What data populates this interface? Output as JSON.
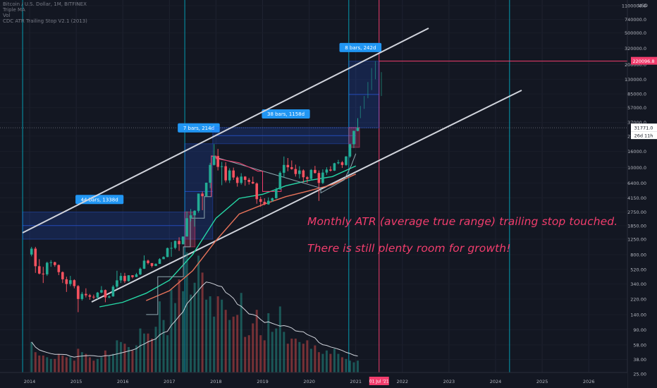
{
  "legend": {
    "symbol": "Bitcoin / U.S. Dollar, 1M, BITFINEX",
    "ind1": "Triple MA",
    "ind2": "Vol",
    "ind3": "CDC ATR Trailing Stop V2.1 (2013)"
  },
  "annotations": {
    "line1": "Monthly ATR (average true range) trailing stop touched.",
    "line2": "There is still plenty room for growth!"
  },
  "measures": [
    {
      "label": "44 bars, 1338d"
    },
    {
      "label": "7 bars, 214d"
    },
    {
      "label": "38 bars, 1158d"
    },
    {
      "label": "8 bars, 242d"
    }
  ],
  "price_axis": {
    "currency": "USD",
    "ticks": [
      1100000.0,
      740000.0,
      500000.0,
      320000.0,
      200000.0,
      130000.0,
      85000.0,
      57000.0,
      37000.0,
      25000.0,
      16000.0,
      10000.0,
      6400.0,
      4150.0,
      2750.0,
      1850.0,
      1250.0,
      800.0,
      520.0,
      340.0,
      220.0,
      140.0,
      90.0,
      58.0,
      38.0,
      25.0
    ],
    "tick_labels": [
      "1100000.0",
      "740000.0",
      "500000.0",
      "320000.0",
      "200000.0",
      "130000.0",
      "85000.0",
      "57000.0",
      "37000.0",
      "25000.0",
      "16000.0",
      "10000.0",
      "6400.00",
      "4150.00",
      "2750.00",
      "1850.00",
      "1250.00",
      "800.00",
      "520.00",
      "340.00",
      "220.00",
      "140.00",
      "90.00",
      "58.00",
      "38.00",
      "25.00"
    ],
    "scale": "log",
    "range": [
      18,
      1300000
    ],
    "markers": {
      "last_price": {
        "label": "31771.0",
        "value": 31771.0
      },
      "countdown": {
        "label": "26d 11h"
      },
      "target": {
        "label": "220096.8",
        "value": 220096.8
      }
    }
  },
  "time_axis": {
    "ticks": [
      "2014",
      "2015",
      "2016",
      "2017",
      "2018",
      "2019",
      "2020",
      "2021",
      "2022",
      "2023",
      "2024",
      "2025",
      "2026"
    ],
    "highlight": "01 Jul '21"
  },
  "colors": {
    "background": "#131722",
    "up": "#26a69a",
    "down": "#ef5350",
    "up_candle": "#22ab94",
    "down_candle": "#f7525f",
    "measure_box": "#2962ff",
    "measure_label": "#2196f3",
    "channel": "#d1d4dc",
    "accent": "#f23d6d",
    "vertical_line": "#00bcd4",
    "ma_fast": "#26d9a7",
    "ma_slow": "#e8735a"
  },
  "chart_data": {
    "type": "candlestick",
    "scale": "log",
    "y_range": [
      18,
      1300000
    ],
    "x": [
      "2014-01",
      "2014-02",
      "2014-03",
      "2014-04",
      "2014-05",
      "2014-06",
      "2014-07",
      "2014-08",
      "2014-09",
      "2014-10",
      "2014-11",
      "2014-12",
      "2015-01",
      "2015-02",
      "2015-03",
      "2015-04",
      "2015-05",
      "2015-06",
      "2015-07",
      "2015-08",
      "2015-09",
      "2015-10",
      "2015-11",
      "2015-12",
      "2016-01",
      "2016-02",
      "2016-03",
      "2016-04",
      "2016-05",
      "2016-06",
      "2016-07",
      "2016-08",
      "2016-09",
      "2016-10",
      "2016-11",
      "2016-12",
      "2017-01",
      "2017-02",
      "2017-03",
      "2017-04",
      "2017-05",
      "2017-06",
      "2017-07",
      "2017-08",
      "2017-09",
      "2017-10",
      "2017-11",
      "2017-12",
      "2018-01",
      "2018-02",
      "2018-03",
      "2018-04",
      "2018-05",
      "2018-06",
      "2018-07",
      "2018-08",
      "2018-09",
      "2018-10",
      "2018-11",
      "2018-12",
      "2019-01",
      "2019-02",
      "2019-03",
      "2019-04",
      "2019-05",
      "2019-06",
      "2019-07",
      "2019-08",
      "2019-09",
      "2019-10",
      "2019-11",
      "2019-12",
      "2020-01",
      "2020-02",
      "2020-03",
      "2020-04",
      "2020-05",
      "2020-06",
      "2020-07",
      "2020-08",
      "2020-09",
      "2020-10",
      "2020-11",
      "2020-12",
      "2021-01"
    ],
    "series": [
      {
        "name": "BTCUSD",
        "ohlc": [
          [
            800,
            1000,
            760,
            950
          ],
          [
            950,
            1000,
            470,
            570
          ],
          [
            570,
            700,
            450,
            460
          ],
          [
            460,
            560,
            350,
            450
          ],
          [
            450,
            650,
            430,
            630
          ],
          [
            630,
            680,
            560,
            640
          ],
          [
            640,
            650,
            560,
            590
          ],
          [
            590,
            600,
            440,
            480
          ],
          [
            480,
            490,
            350,
            390
          ],
          [
            390,
            420,
            270,
            340
          ],
          [
            340,
            430,
            320,
            380
          ],
          [
            380,
            390,
            300,
            320
          ],
          [
            320,
            330,
            150,
            220
          ],
          [
            220,
            270,
            210,
            255
          ],
          [
            255,
            300,
            230,
            245
          ],
          [
            245,
            255,
            215,
            235
          ],
          [
            235,
            250,
            220,
            230
          ],
          [
            230,
            270,
            220,
            265
          ],
          [
            265,
            320,
            260,
            285
          ],
          [
            285,
            290,
            200,
            230
          ],
          [
            230,
            245,
            225,
            237
          ],
          [
            237,
            330,
            235,
            315
          ],
          [
            315,
            500,
            300,
            378
          ],
          [
            378,
            470,
            350,
            430
          ],
          [
            430,
            470,
            350,
            370
          ],
          [
            370,
            440,
            365,
            438
          ],
          [
            438,
            440,
            400,
            416
          ],
          [
            416,
            470,
            415,
            450
          ],
          [
            450,
            550,
            440,
            530
          ],
          [
            530,
            780,
            525,
            670
          ],
          [
            670,
            690,
            600,
            625
          ],
          [
            625,
            620,
            550,
            575
          ],
          [
            575,
            620,
            570,
            610
          ],
          [
            610,
            720,
            610,
            700
          ],
          [
            700,
            760,
            700,
            745
          ],
          [
            745,
            980,
            740,
            965
          ],
          [
            965,
            1150,
            750,
            970
          ],
          [
            970,
            1200,
            930,
            1190
          ],
          [
            1190,
            1320,
            890,
            1080
          ],
          [
            1080,
            1350,
            1070,
            1350
          ],
          [
            1350,
            2800,
            1350,
            2300
          ],
          [
            2300,
            3000,
            2100,
            2500
          ],
          [
            2500,
            2900,
            1800,
            2850
          ],
          [
            2850,
            4700,
            2700,
            4700
          ],
          [
            4700,
            5000,
            2900,
            4350
          ],
          [
            4350,
            6470,
            4300,
            6440
          ],
          [
            6440,
            11500,
            5500,
            10800
          ],
          [
            10800,
            19800,
            10600,
            14000
          ],
          [
            14000,
            17200,
            9200,
            10200
          ],
          [
            10200,
            11800,
            6000,
            10400
          ],
          [
            10400,
            11700,
            6500,
            6900
          ],
          [
            6900,
            9800,
            6400,
            9200
          ],
          [
            9200,
            10000,
            7000,
            7500
          ],
          [
            7500,
            7800,
            5750,
            6400
          ],
          [
            6400,
            8500,
            6100,
            7700
          ],
          [
            7700,
            7800,
            5900,
            7000
          ],
          [
            7000,
            7400,
            6100,
            6600
          ],
          [
            6600,
            7700,
            6200,
            6300
          ],
          [
            6300,
            6500,
            3500,
            4000
          ],
          [
            4000,
            4300,
            3200,
            3700
          ],
          [
            3700,
            4100,
            3350,
            3440
          ],
          [
            3440,
            4200,
            3400,
            3820
          ],
          [
            3820,
            4200,
            3700,
            4100
          ],
          [
            4100,
            5600,
            4050,
            5300
          ],
          [
            5300,
            9000,
            5300,
            8600
          ],
          [
            8600,
            13800,
            7500,
            10800
          ],
          [
            10800,
            13200,
            9000,
            10100
          ],
          [
            10100,
            12300,
            9400,
            9600
          ],
          [
            9600,
            10900,
            7700,
            8300
          ],
          [
            8300,
            10400,
            7300,
            9200
          ],
          [
            9200,
            9500,
            6500,
            7550
          ],
          [
            7550,
            7800,
            6400,
            7200
          ],
          [
            7200,
            9600,
            6900,
            9350
          ],
          [
            9350,
            10500,
            8400,
            8550
          ],
          [
            8550,
            9200,
            3800,
            6400
          ],
          [
            6400,
            9500,
            6200,
            8650
          ],
          [
            8650,
            10100,
            8100,
            9450
          ],
          [
            9450,
            10400,
            8900,
            9150
          ],
          [
            9150,
            11500,
            9050,
            11350
          ],
          [
            11350,
            12500,
            11000,
            11650
          ],
          [
            11650,
            12100,
            9900,
            10780
          ],
          [
            10780,
            14000,
            10500,
            13800
          ],
          [
            13800,
            19900,
            13300,
            19700
          ],
          [
            19700,
            29300,
            17600,
            28990
          ],
          [
            28990,
            42000,
            28700,
            31771
          ]
        ]
      }
    ],
    "moving_averages": [
      {
        "name": "MA fast",
        "values": [
          [
            2015.5,
            175
          ],
          [
            2016.0,
            200
          ],
          [
            2016.5,
            260
          ],
          [
            2017.0,
            380
          ],
          [
            2017.5,
            800
          ],
          [
            2018.0,
            2300
          ],
          [
            2018.5,
            4100
          ],
          [
            2019.0,
            4600
          ],
          [
            2019.5,
            5900
          ],
          [
            2020.0,
            6900
          ],
          [
            2020.5,
            7700
          ],
          [
            2021.0,
            10500
          ]
        ]
      },
      {
        "name": "MA slow",
        "values": [
          [
            2016.5,
            210
          ],
          [
            2017.0,
            280
          ],
          [
            2017.5,
            500
          ],
          [
            2018.0,
            1200
          ],
          [
            2018.5,
            2600
          ],
          [
            2019.0,
            3400
          ],
          [
            2019.5,
            4300
          ],
          [
            2020.0,
            5100
          ],
          [
            2020.5,
            6100
          ],
          [
            2021.0,
            8300
          ]
        ]
      }
    ],
    "volume": [
      18,
      12,
      10,
      10,
      9,
      8,
      8,
      11,
      10,
      9,
      9,
      7,
      14,
      12,
      11,
      9,
      7,
      8,
      9,
      13,
      10,
      11,
      19,
      18,
      17,
      15,
      13,
      16,
      26,
      23,
      23,
      20,
      27,
      42,
      31,
      22,
      49,
      41,
      55,
      48,
      71,
      46,
      53,
      69,
      59,
      43,
      45,
      33,
      45,
      43,
      37,
      31,
      33,
      34,
      47,
      21,
      22,
      29,
      37,
      22,
      19,
      35,
      24,
      26,
      39,
      24,
      17,
      20,
      20,
      18,
      17,
      19,
      14,
      16,
      12,
      11,
      13,
      11,
      14,
      11,
      9,
      8,
      7,
      6,
      7
    ]
  }
}
